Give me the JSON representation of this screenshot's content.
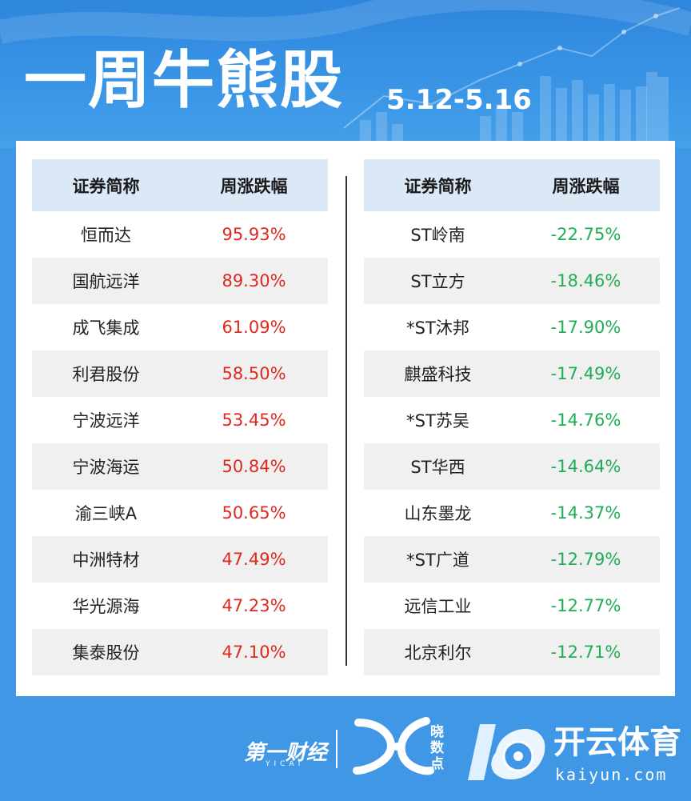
{
  "header": {
    "title": "一周牛熊股",
    "date_range": "5.12-5.16"
  },
  "left_table": {
    "columns": [
      "证券简称",
      "周涨跌幅"
    ],
    "rows": [
      {
        "name": "恒而达",
        "change": "95.93%"
      },
      {
        "name": "国航远洋",
        "change": "89.30%"
      },
      {
        "name": "成飞集成",
        "change": "61.09%"
      },
      {
        "name": "利君股份",
        "change": "58.50%"
      },
      {
        "name": "宁波远洋",
        "change": "53.45%"
      },
      {
        "name": "宁波海运",
        "change": "50.84%"
      },
      {
        "name": "渝三峡A",
        "change": "50.65%"
      },
      {
        "name": "中洲特材",
        "change": "47.49%"
      },
      {
        "name": "华光源海",
        "change": "47.23%"
      },
      {
        "name": "集泰股份",
        "change": "47.10%"
      }
    ]
  },
  "right_table": {
    "columns": [
      "证券简称",
      "周涨跌幅"
    ],
    "rows": [
      {
        "name": "ST岭南",
        "change": "-22.75%"
      },
      {
        "name": "ST立方",
        "change": "-18.46%"
      },
      {
        "name": "*ST沐邦",
        "change": "-17.90%"
      },
      {
        "name": "麒盛科技",
        "change": "-17.49%"
      },
      {
        "name": "*ST苏吴",
        "change": "-14.76%"
      },
      {
        "name": "ST华西",
        "change": "-14.64%"
      },
      {
        "name": "山东墨龙",
        "change": "-14.37%"
      },
      {
        "name": "*ST广道",
        "change": "-12.79%"
      },
      {
        "name": "远信工业",
        "change": "-12.77%"
      },
      {
        "name": "北京利尔",
        "change": "-12.71%"
      }
    ]
  },
  "footer": {
    "yicai_logo": "第一财经",
    "yicai_sub": "YICAI",
    "xsd_logo": "晓数点",
    "kaiyun_cn": "开云体育",
    "kaiyun_en": "kaiyun.com"
  },
  "colors": {
    "background": "#3f97e6",
    "header_row": "#dbe8f6",
    "alt_row": "#f0f0f0",
    "gain": "#e0281f",
    "loss": "#1fae55"
  }
}
